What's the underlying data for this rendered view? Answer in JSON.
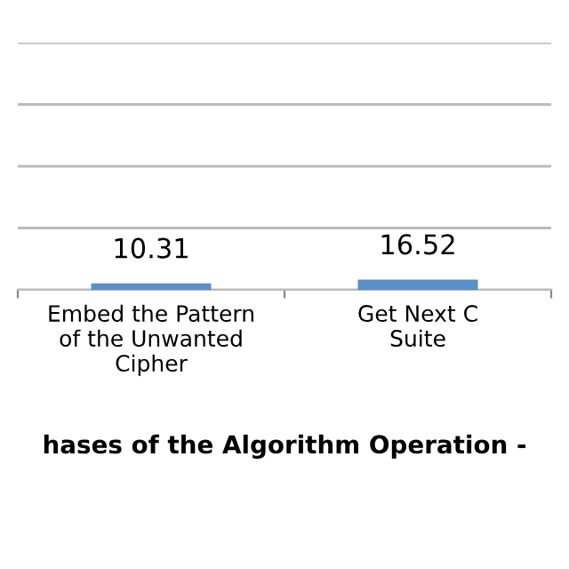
{
  "chart_data": {
    "type": "bar",
    "xlabel": "hases of the Algorithm Operation -",
    "categories": [
      "Embed the Pattern\nof the Unwanted\nCipher",
      "Get Next C\nSuite"
    ],
    "values": [
      10.31,
      16.52
    ],
    "color": "#5b8fc7",
    "ylim": [
      0,
      400
    ],
    "yticks": [
      {
        "value": 0,
        "label": null
      },
      {
        "value": 100,
        "label": null
      },
      {
        "value": 200,
        "label": null
      },
      {
        "value": 300,
        "label": null
      },
      {
        "value": 400,
        "label": null
      }
    ],
    "grid": "y",
    "data_labels": true,
    "tick_labels": "x"
  }
}
